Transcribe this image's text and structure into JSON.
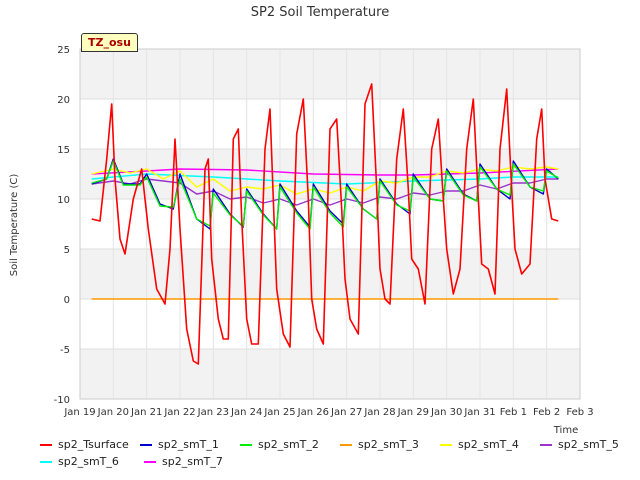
{
  "chart_data": {
    "type": "line",
    "title": "SP2 Soil Temperature",
    "xlabel": "Time",
    "ylabel": "Soil Temperature (C)",
    "ylim": [
      -10,
      25
    ],
    "xlim": [
      0,
      15
    ],
    "y_ticks": [
      -10,
      -5,
      0,
      5,
      10,
      15,
      20,
      25
    ],
    "x_ticks": [
      {
        "x": 0,
        "label": "Jan 19"
      },
      {
        "x": 1,
        "label": "Jan 20"
      },
      {
        "x": 2,
        "label": "Jan 21"
      },
      {
        "x": 3,
        "label": "Jan 22"
      },
      {
        "x": 4,
        "label": "Jan 23"
      },
      {
        "x": 5,
        "label": "Jan 24"
      },
      {
        "x": 6,
        "label": "Jan 25"
      },
      {
        "x": 7,
        "label": "Jan 26"
      },
      {
        "x": 8,
        "label": "Jan 27"
      },
      {
        "x": 9,
        "label": "Jan 28"
      },
      {
        "x": 10,
        "label": "Jan 29"
      },
      {
        "x": 11,
        "label": "Jan 30"
      },
      {
        "x": 12,
        "label": "Jan 31"
      },
      {
        "x": 13,
        "label": "Feb 1"
      },
      {
        "x": 14,
        "label": "Feb 2"
      },
      {
        "x": 15,
        "label": "Feb 3"
      }
    ],
    "grid": true,
    "legend_position": "bottom",
    "annotation": "TZ_osu",
    "series": [
      {
        "name": "sp2_Tsurface",
        "color": "#ff0000",
        "x": [
          0.35,
          0.6,
          0.8,
          0.95,
          1.05,
          1.2,
          1.35,
          1.6,
          1.85,
          2.05,
          2.3,
          2.55,
          2.7,
          2.85,
          3.0,
          3.2,
          3.4,
          3.55,
          3.75,
          3.85,
          3.95,
          4.15,
          4.3,
          4.45,
          4.6,
          4.75,
          4.85,
          5.0,
          5.15,
          5.35,
          5.55,
          5.7,
          5.8,
          5.9,
          6.1,
          6.3,
          6.5,
          6.7,
          6.85,
          6.95,
          7.1,
          7.3,
          7.5,
          7.7,
          7.85,
          7.95,
          8.1,
          8.35,
          8.55,
          8.75,
          8.9,
          9.0,
          9.15,
          9.3,
          9.5,
          9.7,
          9.85,
          9.95,
          10.15,
          10.35,
          10.55,
          10.75,
          10.9,
          11.0,
          11.2,
          11.4,
          11.6,
          11.8,
          11.95,
          12.05,
          12.25,
          12.45,
          12.6,
          12.8,
          12.95,
          13.05,
          13.25,
          13.5,
          13.7,
          13.85,
          13.95,
          14.15,
          14.35
        ],
        "values": [
          8,
          7.8,
          14,
          19.5,
          12,
          6,
          4.5,
          10,
          13,
          7,
          1,
          -0.5,
          5,
          16,
          7,
          -3,
          -6.2,
          -6.5,
          13,
          14,
          4,
          -2,
          -4,
          -4,
          16,
          17,
          8,
          -2,
          -4.5,
          -4.5,
          15,
          19,
          10,
          1,
          -3.5,
          -4.8,
          16.5,
          20,
          10,
          0,
          -3,
          -4.5,
          17,
          18,
          9,
          2,
          -2,
          -3.5,
          19.5,
          21.5,
          11,
          3,
          0,
          -0.5,
          14,
          19,
          11,
          4,
          3,
          -0.5,
          15,
          18,
          10,
          5,
          0.5,
          3,
          15,
          20,
          10,
          3.5,
          3,
          0.5,
          15,
          21,
          11,
          5,
          2.5,
          3.5,
          16,
          19,
          12,
          8,
          7.8
        ]
      },
      {
        "name": "sp2_smT_1",
        "color": "#0000cc",
        "x": [
          0.35,
          0.8,
          1.0,
          1.3,
          1.8,
          2.0,
          2.4,
          2.8,
          3.0,
          3.5,
          3.9,
          4.0,
          4.5,
          4.9,
          5.0,
          5.5,
          5.9,
          6.0,
          6.5,
          6.9,
          7.0,
          7.5,
          7.9,
          8.0,
          8.5,
          8.9,
          9.0,
          9.5,
          9.9,
          10.0,
          10.5,
          10.9,
          11.0,
          11.5,
          11.9,
          12.0,
          12.5,
          12.9,
          13.0,
          13.5,
          13.9,
          14.0,
          14.35
        ],
        "values": [
          11.5,
          12,
          14,
          11.5,
          11.5,
          12.5,
          9.5,
          9,
          12.5,
          8,
          7,
          11,
          8.5,
          7.2,
          11,
          8.5,
          7,
          11.5,
          8.8,
          7.2,
          11.5,
          8.8,
          7.5,
          11.5,
          9,
          8,
          12,
          9.5,
          8.5,
          12.5,
          10,
          9.8,
          13,
          10.5,
          9.8,
          13.5,
          11,
          10,
          13.8,
          11.2,
          10.5,
          13,
          12
        ]
      },
      {
        "name": "sp2_smT_2",
        "color": "#00ee00",
        "x": [
          0.35,
          0.8,
          1.0,
          1.3,
          1.8,
          2.0,
          2.4,
          2.8,
          3.0,
          3.5,
          3.9,
          4.0,
          4.5,
          4.9,
          5.0,
          5.5,
          5.9,
          6.0,
          6.5,
          6.9,
          7.0,
          7.5,
          7.9,
          8.0,
          8.5,
          8.9,
          9.0,
          9.5,
          9.9,
          10.0,
          10.5,
          10.9,
          11.0,
          11.5,
          11.9,
          12.0,
          12.5,
          12.9,
          13.0,
          13.5,
          13.9,
          14.0,
          14.35
        ],
        "values": [
          11.6,
          12,
          13.8,
          11.4,
          11.4,
          12.2,
          9.3,
          9.2,
          12,
          8,
          7.3,
          10.6,
          8.4,
          7.3,
          10.8,
          8.4,
          7,
          11.2,
          8.6,
          7,
          11.2,
          8.6,
          7.2,
          11.2,
          9,
          8,
          11.8,
          9.4,
          8.8,
          12.2,
          10,
          9.8,
          12.8,
          10.4,
          9.8,
          13.2,
          11,
          10.4,
          13.5,
          11.2,
          10.8,
          12.8,
          12.1
        ]
      },
      {
        "name": "sp2_smT_3",
        "color": "#ff9900",
        "x": [
          0.35,
          14.35
        ],
        "values": [
          0,
          0
        ]
      },
      {
        "name": "sp2_smT_4",
        "color": "#ffff00",
        "x": [
          0.35,
          1.0,
          1.5,
          2.0,
          2.5,
          3.0,
          3.5,
          4.0,
          4.5,
          5.0,
          5.5,
          6.0,
          6.5,
          7.0,
          7.5,
          8.0,
          8.5,
          9.0,
          9.5,
          10.0,
          10.5,
          11.0,
          11.5,
          12.0,
          12.5,
          13.0,
          13.5,
          14.0,
          14.35
        ],
        "values": [
          12.5,
          13,
          12.6,
          13,
          12,
          12.8,
          11.2,
          12,
          10.8,
          11.2,
          11,
          11.4,
          10.5,
          11,
          10.6,
          11.2,
          10.8,
          11.8,
          11.6,
          12.2,
          12.2,
          12.8,
          12.6,
          13,
          12.8,
          13.2,
          13,
          13.2,
          13
        ]
      },
      {
        "name": "sp2_smT_5",
        "color": "#9933cc",
        "x": [
          0.35,
          1.0,
          1.5,
          2.0,
          2.5,
          3.0,
          3.5,
          4.0,
          4.5,
          5.0,
          5.5,
          6.0,
          6.5,
          7.0,
          7.5,
          8.0,
          8.5,
          9.0,
          9.5,
          10.0,
          10.5,
          11.0,
          11.5,
          12.0,
          12.5,
          13.0,
          13.5,
          14.0,
          14.35
        ],
        "values": [
          11.5,
          11.8,
          11.5,
          12,
          11.8,
          11.6,
          10.5,
          10.8,
          10,
          10.2,
          9.6,
          10,
          9.4,
          10,
          9.4,
          10,
          9.6,
          10.2,
          10,
          10.6,
          10.4,
          10.8,
          10.8,
          11.4,
          11,
          11.6,
          11.6,
          12,
          12
        ]
      },
      {
        "name": "sp2_smT_6",
        "color": "#00ffff",
        "x": [
          0.35,
          2,
          4,
          6,
          8,
          10,
          12,
          13,
          14.35
        ],
        "values": [
          12,
          12.5,
          12.2,
          11.8,
          11.5,
          11.8,
          12,
          12.2,
          12.2
        ]
      },
      {
        "name": "sp2_smT_7",
        "color": "#ff00ff",
        "x": [
          0.35,
          2,
          3,
          5,
          7,
          9,
          10,
          12,
          14.35
        ],
        "values": [
          12.5,
          12.8,
          13,
          12.9,
          12.5,
          12.4,
          12.4,
          12.6,
          13
        ]
      }
    ]
  }
}
